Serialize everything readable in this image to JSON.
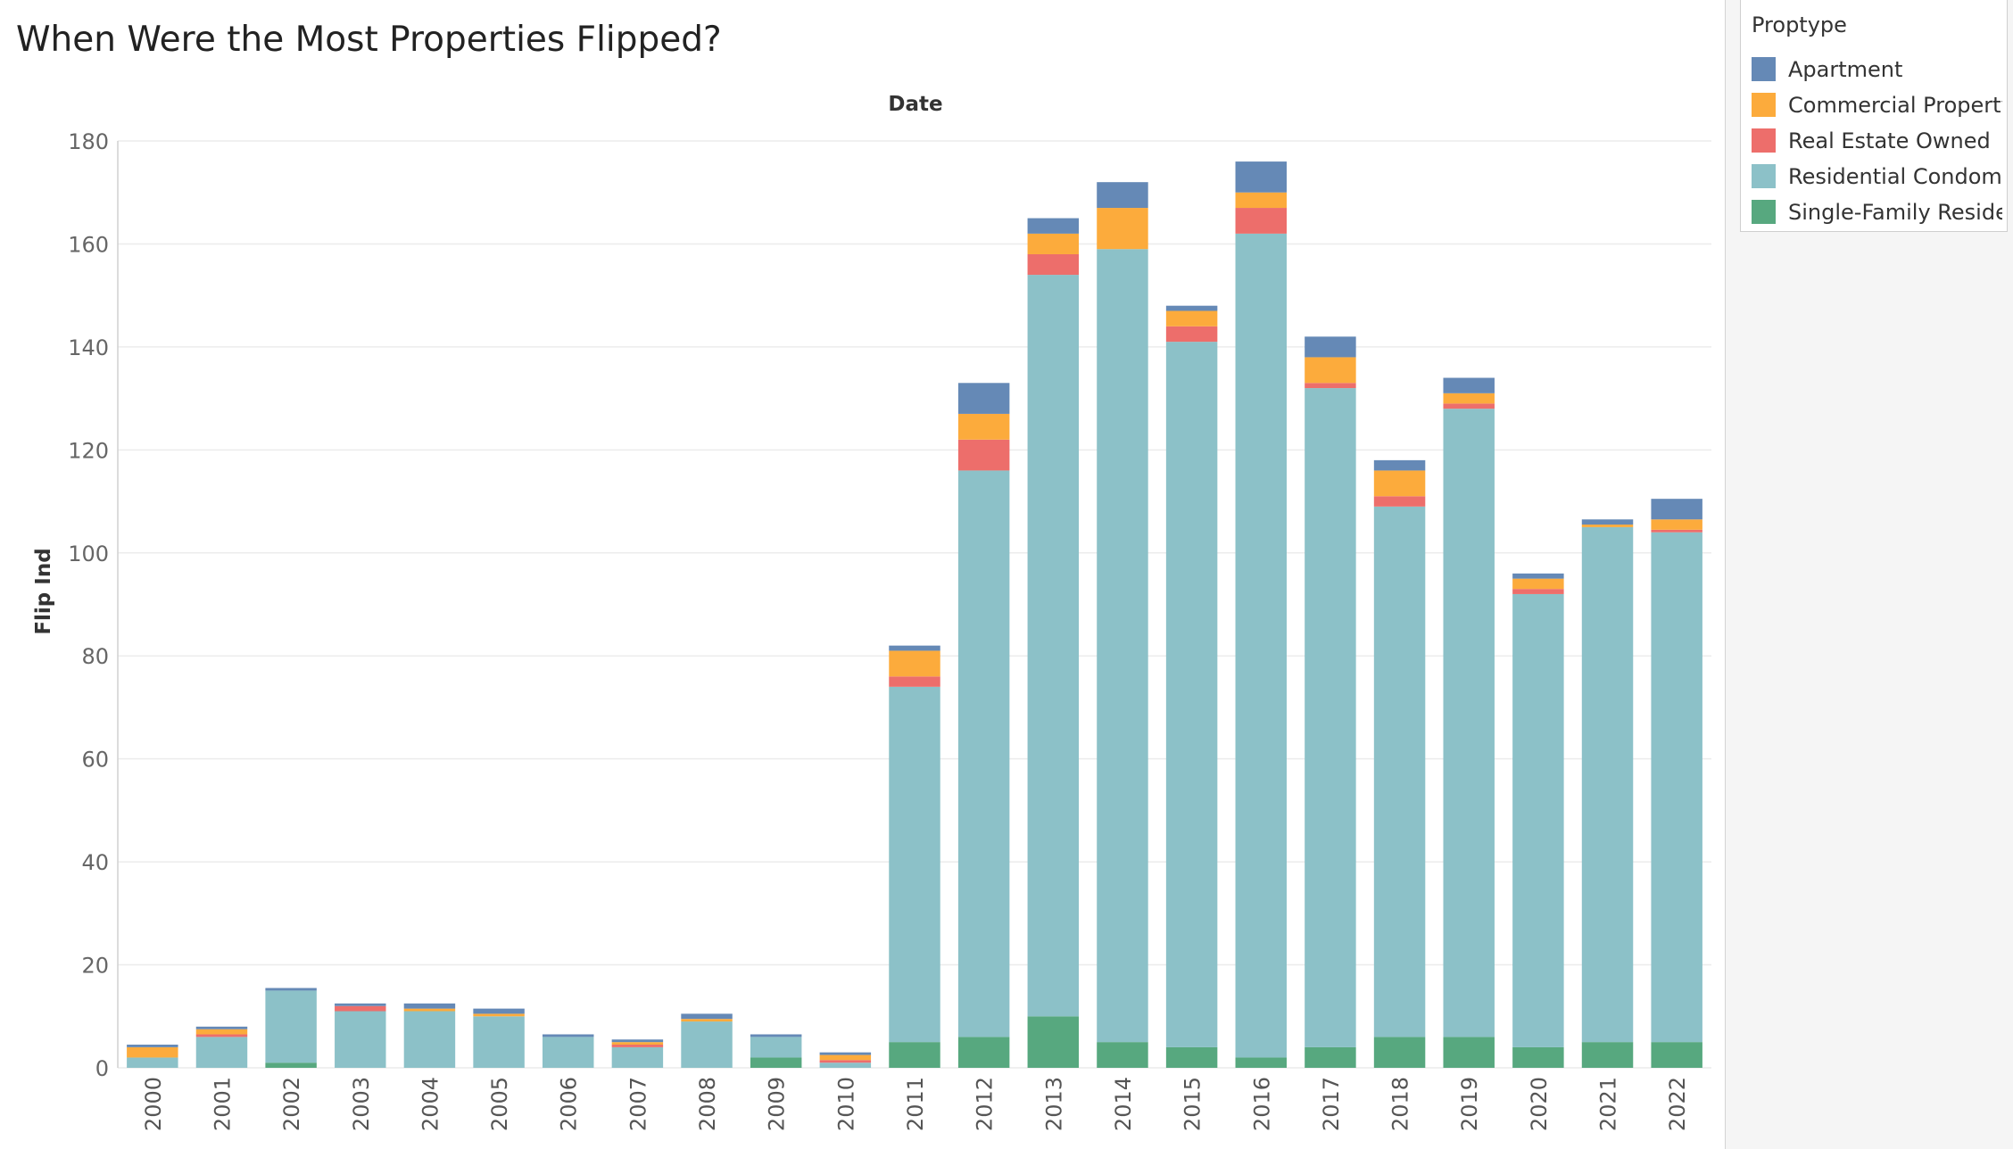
{
  "chart_data": {
    "type": "bar",
    "stacked": true,
    "title": "When Were the Most Properties Flipped?",
    "xlabel": "Date",
    "ylabel": "Flip Ind",
    "ylim": [
      0,
      180
    ],
    "yticks": [
      0,
      20,
      40,
      60,
      80,
      100,
      120,
      140,
      160,
      180
    ],
    "grid": true,
    "legend_position": "right",
    "categories": [
      "2000",
      "2001",
      "2002",
      "2003",
      "2004",
      "2005",
      "2006",
      "2007",
      "2008",
      "2009",
      "2010",
      "2011",
      "2012",
      "2013",
      "2014",
      "2015",
      "2016",
      "2017",
      "2018",
      "2019",
      "2020",
      "2021",
      "2022"
    ],
    "series": [
      {
        "name": "Single-Family Reside..",
        "color": "#57a87f",
        "values": [
          0,
          0,
          1,
          0,
          0,
          0,
          0,
          0,
          0,
          2,
          0,
          5,
          6,
          10,
          5,
          4,
          2,
          4,
          6,
          6,
          4,
          5,
          5
        ]
      },
      {
        "name": "Residential Condomi..",
        "color": "#8cc1c8",
        "values": [
          2,
          6,
          14,
          11,
          11,
          10,
          6,
          4,
          9,
          4,
          1,
          69,
          110,
          144,
          154,
          137,
          160,
          128,
          103,
          122,
          88,
          100,
          99
        ]
      },
      {
        "name": "Real Estate Owned",
        "color": "#ed6e6b",
        "values": [
          0,
          0.5,
          0,
          1,
          0,
          0,
          0,
          0.5,
          0,
          0,
          0.5,
          2,
          6,
          4,
          0,
          3,
          5,
          1,
          2,
          1,
          1,
          0,
          0.5
        ]
      },
      {
        "name": "Commercial Property",
        "color": "#fcab3c",
        "values": [
          2,
          1,
          0,
          0,
          0.5,
          0.5,
          0,
          0.5,
          0.5,
          0,
          1,
          5,
          5,
          4,
          8,
          3,
          3,
          5,
          5,
          2,
          2,
          0.5,
          2
        ]
      },
      {
        "name": "Apartment",
        "color": "#6589b6",
        "values": [
          0.5,
          0.5,
          0.5,
          0.5,
          1,
          1,
          0.5,
          0.5,
          1,
          0.5,
          0.5,
          1,
          6,
          3,
          5,
          1,
          6,
          4,
          2,
          3,
          1,
          1,
          4
        ]
      }
    ]
  },
  "legend": {
    "title": "Proptype",
    "items": [
      {
        "label": "Apartment",
        "color": "#6589b6"
      },
      {
        "label": "Commercial Property",
        "color": "#fcab3c"
      },
      {
        "label": "Real Estate Owned",
        "color": "#ed6e6b"
      },
      {
        "label": "Residential Condomi..",
        "color": "#8cc1c8"
      },
      {
        "label": "Single-Family Reside..",
        "color": "#57a87f"
      }
    ]
  }
}
